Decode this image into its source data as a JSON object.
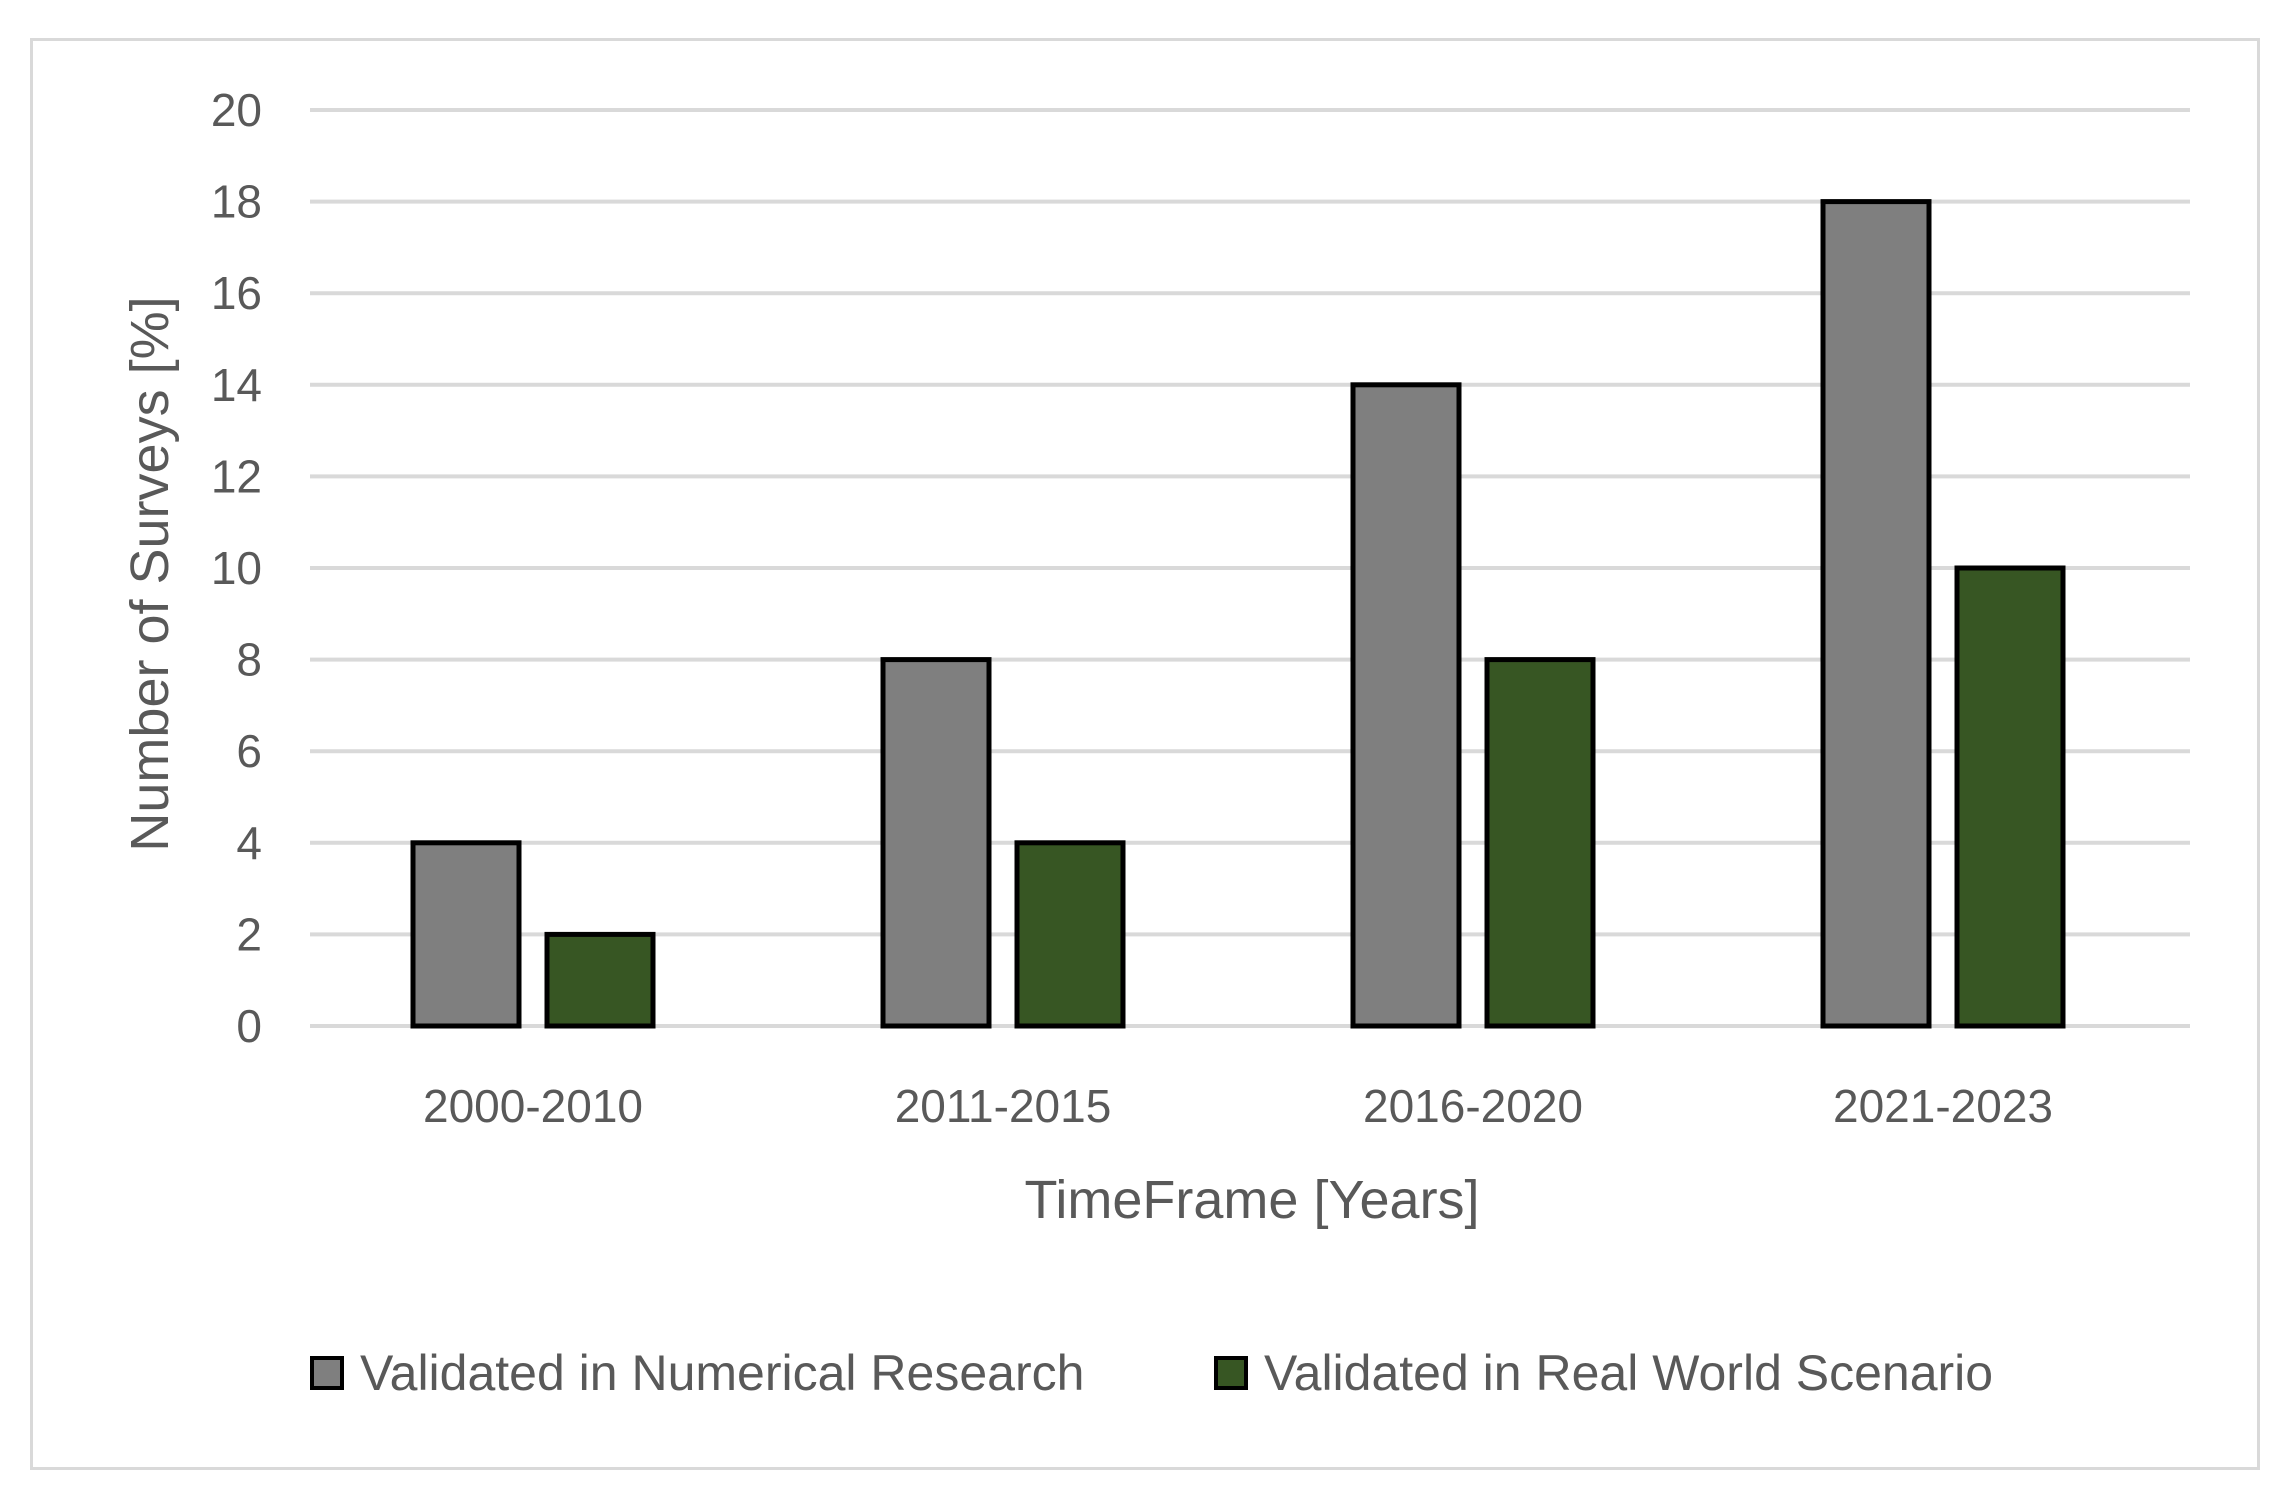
{
  "chart_data": {
    "type": "bar",
    "title": "",
    "xlabel": "TimeFrame [Years]",
    "ylabel": "Number of Surveys [%]",
    "categories": [
      "2000-2010",
      "2011-2015",
      "2016-2020",
      "2021-2023"
    ],
    "ylim": [
      0,
      20
    ],
    "yticks": [
      0,
      2,
      4,
      6,
      8,
      10,
      12,
      14,
      16,
      18,
      20
    ],
    "grid": true,
    "legend_position": "bottom",
    "series": [
      {
        "name": "Validated in Numerical Research",
        "values": [
          4,
          8,
          14,
          18
        ],
        "color": "#7f7f7f"
      },
      {
        "name": "Validated in Real World Scenario",
        "values": [
          2,
          4,
          8,
          10
        ],
        "color": "#375623"
      }
    ]
  }
}
